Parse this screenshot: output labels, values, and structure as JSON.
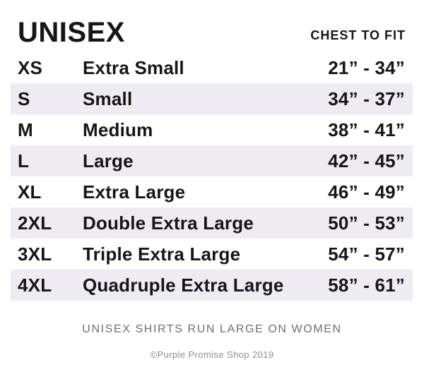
{
  "header": {
    "title": "UNISEX",
    "column_label": "CHEST TO FIT"
  },
  "table": {
    "rows": [
      {
        "code": "XS",
        "label": "Extra Small",
        "range": "21” - 34”"
      },
      {
        "code": "S",
        "label": "Small",
        "range": "34” - 37”"
      },
      {
        "code": "M",
        "label": "Medium",
        "range": "38” - 41”"
      },
      {
        "code": "L",
        "label": "Large",
        "range": "42” - 45”"
      },
      {
        "code": "XL",
        "label": "Extra Large",
        "range": "46” - 49”"
      },
      {
        "code": "2XL",
        "label": "Double Extra Large",
        "range": "50” - 53”"
      },
      {
        "code": "3XL",
        "label": "Triple Extra Large",
        "range": "54” - 57”"
      },
      {
        "code": "4XL",
        "label": "Quadruple Extra Large",
        "range": "58” - 61”"
      }
    ]
  },
  "footer": {
    "note": "UNISEX SHIRTS RUN LARGE ON WOMEN",
    "copyright": "©Purple Promise Shop 2019"
  },
  "colors": {
    "text": "#161616",
    "row_alt": "#efebf3",
    "note": "#6d6d75",
    "copyright": "#8d8d93"
  }
}
